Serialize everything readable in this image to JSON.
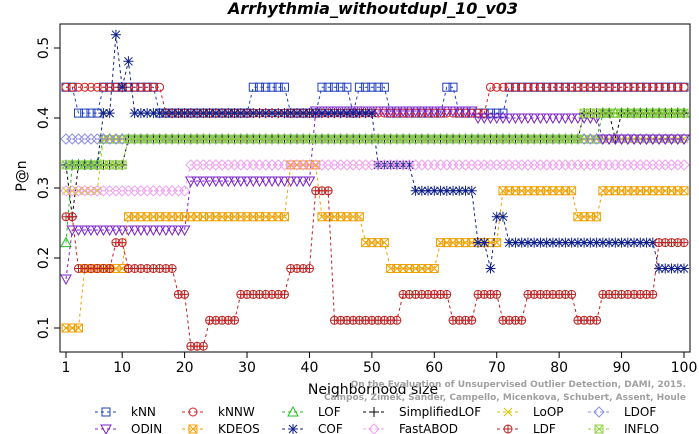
{
  "chart_data": {
    "type": "line",
    "title": "Arrhythmia_withoutdupl_10_v03",
    "xlabel": "Neighborhood size",
    "ylabel": "P@n",
    "xlim": [
      1,
      100
    ],
    "ylim": [
      0.07,
      0.53
    ],
    "x_ticks": [
      1,
      10,
      20,
      30,
      40,
      50,
      60,
      70,
      80,
      90,
      100
    ],
    "y_ticks": [
      0.1,
      0.2,
      0.3,
      0.4,
      0.5
    ],
    "credit": [
      "Campos, Zimek, Sander, Campello, Micenkova, Schubert, Assent, Houle",
      "On the Evaluation of Unsupervised Outlier Detection, DAMI, 2015."
    ],
    "legend_position": "bottom",
    "series": [
      {
        "name": "kNN",
        "color": "#1f3fbf",
        "marker": "square",
        "segments": [
          [
            1,
            2,
            0.444
          ],
          [
            3,
            6,
            0.407
          ],
          [
            7,
            15,
            0.444
          ],
          [
            16,
            100,
            0.407
          ]
        ],
        "overrides": [
          [
            31,
            36,
            0.444
          ],
          [
            42,
            46,
            0.444
          ],
          [
            48,
            52,
            0.444
          ],
          [
            62,
            63,
            0.444
          ],
          [
            72,
            100,
            0.444
          ]
        ]
      },
      {
        "name": "kNNW",
        "color": "#d42020",
        "marker": "circle",
        "segments": [
          [
            1,
            5,
            0.444
          ],
          [
            6,
            16,
            0.444
          ],
          [
            17,
            49,
            0.407
          ],
          [
            50,
            68,
            0.407
          ],
          [
            69,
            100,
            0.444
          ]
        ]
      },
      {
        "name": "LOF",
        "color": "#20c020",
        "marker": "triangle",
        "segments": [
          [
            1,
            1,
            0.222
          ],
          [
            2,
            6,
            0.333
          ],
          [
            7,
            10,
            0.37
          ],
          [
            11,
            86,
            0.37
          ],
          [
            87,
            100,
            0.407
          ]
        ]
      },
      {
        "name": "SimplifiedLOF",
        "color": "#000000",
        "marker": "plus",
        "segments": [
          [
            1,
            1,
            0.333
          ],
          [
            2,
            2,
            0.259
          ],
          [
            3,
            6,
            0.333
          ],
          [
            7,
            10,
            0.333
          ],
          [
            11,
            36,
            0.37
          ],
          [
            37,
            83,
            0.37
          ],
          [
            84,
            88,
            0.407
          ],
          [
            89,
            89,
            0.37
          ],
          [
            90,
            100,
            0.407
          ]
        ]
      },
      {
        "name": "LoOP",
        "color": "#d4c400",
        "marker": "x",
        "segments": [
          [
            1,
            6,
            0.296
          ],
          [
            7,
            11,
            0.37
          ],
          [
            12,
            87,
            0.37
          ],
          [
            88,
            100,
            0.37
          ]
        ]
      },
      {
        "name": "LDOF",
        "color": "#9090e0",
        "marker": "diamond",
        "segments": [
          [
            1,
            100,
            0.37
          ]
        ]
      },
      {
        "name": "ODIN",
        "color": "#7a20c8",
        "marker": "invtriangle",
        "segments": [
          [
            1,
            1,
            0.17
          ],
          [
            2,
            20,
            0.24
          ],
          [
            21,
            40,
            0.31
          ],
          [
            41,
            66,
            0.41
          ],
          [
            67,
            86,
            0.4
          ],
          [
            87,
            100,
            0.37
          ]
        ]
      },
      {
        "name": "KDEOS",
        "color": "#f0a000",
        "marker": "boxtimes",
        "segments": [
          [
            1,
            3,
            0.1
          ],
          [
            4,
            10,
            0.185
          ],
          [
            11,
            24,
            0.259
          ],
          [
            25,
            36,
            0.259
          ],
          [
            37,
            41,
            0.333
          ],
          [
            42,
            48,
            0.259
          ],
          [
            49,
            52,
            0.222
          ],
          [
            53,
            60,
            0.185
          ],
          [
            61,
            70,
            0.222
          ],
          [
            71,
            82,
            0.296
          ],
          [
            83,
            86,
            0.259
          ],
          [
            87,
            100,
            0.296
          ]
        ]
      },
      {
        "name": "COF",
        "color": "#10208a",
        "marker": "asterisk",
        "segments": [
          [
            1,
            6,
            0.333
          ],
          [
            7,
            8,
            0.407
          ],
          [
            9,
            9,
            0.519
          ],
          [
            10,
            10,
            0.444
          ],
          [
            11,
            11,
            0.481
          ],
          [
            12,
            50,
            0.407
          ],
          [
            51,
            56,
            0.333
          ],
          [
            57,
            66,
            0.296
          ],
          [
            67,
            68,
            0.222
          ],
          [
            69,
            69,
            0.185
          ],
          [
            70,
            71,
            0.259
          ],
          [
            72,
            95,
            0.222
          ],
          [
            96,
            100,
            0.185
          ]
        ]
      },
      {
        "name": "FastABOD",
        "color": "#f0a0f0",
        "marker": "diamond",
        "segments": [
          [
            1,
            2,
            0.296
          ],
          [
            3,
            20,
            0.296
          ],
          [
            21,
            100,
            0.333
          ]
        ]
      },
      {
        "name": "LDF",
        "color": "#c02020",
        "marker": "circleplus",
        "segments": [
          [
            1,
            2,
            0.259
          ],
          [
            3,
            8,
            0.185
          ],
          [
            9,
            10,
            0.222
          ],
          [
            11,
            18,
            0.185
          ],
          [
            19,
            20,
            0.148
          ],
          [
            21,
            23,
            0.074
          ],
          [
            24,
            28,
            0.111
          ],
          [
            29,
            36,
            0.148
          ],
          [
            37,
            40,
            0.185
          ],
          [
            41,
            43,
            0.296
          ],
          [
            44,
            54,
            0.111
          ],
          [
            55,
            62,
            0.148
          ],
          [
            63,
            66,
            0.111
          ],
          [
            67,
            70,
            0.148
          ],
          [
            71,
            74,
            0.111
          ],
          [
            75,
            82,
            0.148
          ],
          [
            83,
            86,
            0.111
          ],
          [
            87,
            95,
            0.148
          ],
          [
            96,
            100,
            0.222
          ]
        ]
      },
      {
        "name": "INFLO",
        "color": "#90d040",
        "marker": "boxtimes",
        "segments": [
          [
            1,
            4,
            0.333
          ],
          [
            5,
            10,
            0.333
          ],
          [
            11,
            83,
            0.37
          ],
          [
            84,
            100,
            0.407
          ]
        ]
      }
    ]
  }
}
